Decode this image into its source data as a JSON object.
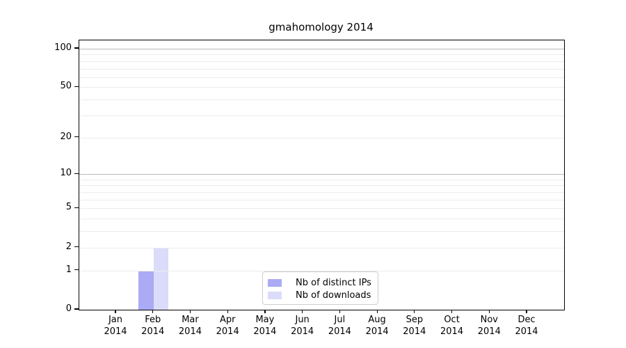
{
  "chart_data": {
    "type": "bar",
    "title": "gmahomology 2014",
    "categories": [
      {
        "month": "Jan",
        "year": "2014"
      },
      {
        "month": "Feb",
        "year": "2014"
      },
      {
        "month": "Mar",
        "year": "2014"
      },
      {
        "month": "Apr",
        "year": "2014"
      },
      {
        "month": "May",
        "year": "2014"
      },
      {
        "month": "Jun",
        "year": "2014"
      },
      {
        "month": "Jul",
        "year": "2014"
      },
      {
        "month": "Aug",
        "year": "2014"
      },
      {
        "month": "Sep",
        "year": "2014"
      },
      {
        "month": "Oct",
        "year": "2014"
      },
      {
        "month": "Nov",
        "year": "2014"
      },
      {
        "month": "Dec",
        "year": "2014"
      }
    ],
    "series": [
      {
        "name": "Nb of distinct IPs",
        "color": "#aaaaf5",
        "values": [
          0,
          1,
          0,
          0,
          0,
          0,
          0,
          0,
          0,
          0,
          0,
          0
        ]
      },
      {
        "name": "Nb of downloads",
        "color": "#dbdbfa",
        "values": [
          0,
          2,
          0,
          0,
          0,
          0,
          0,
          0,
          0,
          0,
          0,
          0
        ]
      }
    ],
    "y_axis": {
      "scale": "log1p",
      "ticks": [
        0,
        1,
        2,
        5,
        10,
        20,
        50,
        100
      ],
      "minor_gridlines": [
        1,
        2,
        3,
        4,
        5,
        6,
        7,
        8,
        9,
        10,
        20,
        30,
        40,
        50,
        60,
        70,
        80,
        90,
        100
      ],
      "emphasized_gridlines": [
        10,
        100
      ],
      "top_value": 116
    },
    "legend": {
      "position": "bottom-center"
    },
    "colors": {
      "background": "#ffffff",
      "spine": "#000000",
      "minor_grid": "#ececec",
      "decade_grid": "#b9b9b9",
      "legend_border": "#cccccc",
      "text": "#000000"
    }
  }
}
